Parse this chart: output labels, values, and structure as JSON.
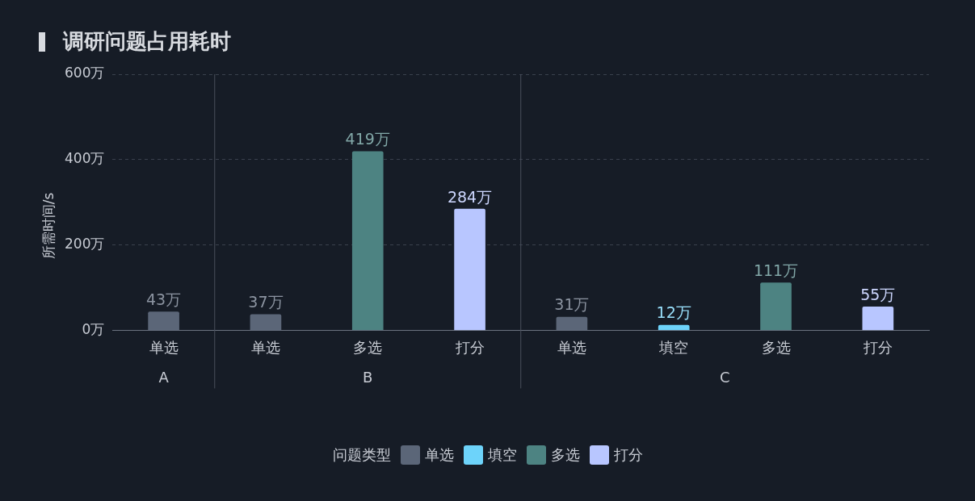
{
  "chart_data": {
    "type": "bar",
    "title": "调研问题占用耗时",
    "ylabel": "所需时间/s",
    "legend_title": "问题类型",
    "categories": [
      "单选",
      "单选",
      "多选",
      "打分",
      "单选",
      "填空",
      "多选",
      "打分"
    ],
    "series": [
      {
        "name": "单选",
        "color": "#5b6678",
        "values": [
          43,
          37,
          null,
          null,
          31,
          null,
          null,
          null
        ],
        "value_labels": [
          "43万",
          "37万",
          null,
          null,
          "31万",
          null,
          null,
          null
        ]
      },
      {
        "name": "填空",
        "color": "#6dd3fa",
        "values": [
          null,
          null,
          null,
          null,
          null,
          12,
          null,
          null
        ],
        "value_labels": [
          null,
          null,
          null,
          null,
          null,
          "12万",
          null,
          null
        ]
      },
      {
        "name": "多选",
        "color": "#4d8382",
        "values": [
          null,
          null,
          419,
          null,
          null,
          null,
          111,
          null
        ],
        "value_labels": [
          null,
          null,
          "419万",
          null,
          null,
          null,
          "111万",
          null
        ]
      },
      {
        "name": "打分",
        "color": "#b8c6ff",
        "values": [
          null,
          null,
          null,
          284,
          null,
          null,
          null,
          55
        ],
        "value_labels": [
          null,
          null,
          null,
          "284万",
          null,
          null,
          null,
          "55万"
        ]
      }
    ],
    "annotations": [
      "A",
      "B",
      "C"
    ],
    "ylim": [
      0,
      600
    ],
    "yticks": [
      {
        "value": 0,
        "label": "0万"
      },
      {
        "value": 200,
        "label": "200万"
      },
      {
        "value": 400,
        "label": "400万"
      },
      {
        "value": 600,
        "label": "600万"
      }
    ],
    "grid": "y",
    "legend": "bottom"
  }
}
